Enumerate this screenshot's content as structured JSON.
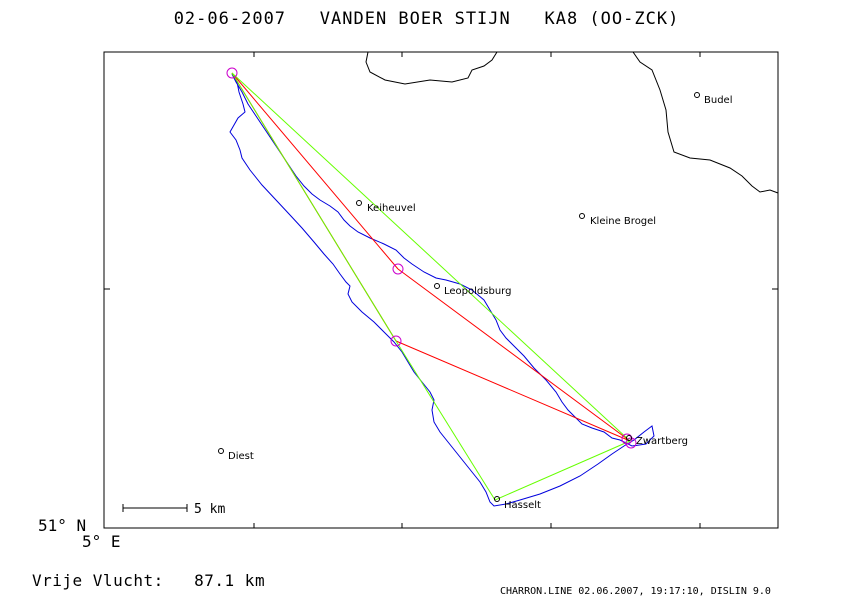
{
  "title": {
    "date": "02-06-2007",
    "pilot": "VANDEN BOER STIJN",
    "glider": "KA8 (OO-ZCK)"
  },
  "map": {
    "corner_lat": "51° N",
    "corner_lon": "5° E",
    "scale_label": "5 km",
    "places": [
      {
        "name": "Budel"
      },
      {
        "name": "Keiheuvel"
      },
      {
        "name": "Kleine Brogel"
      },
      {
        "name": "Leopoldsburg"
      },
      {
        "name": "Zwartberg"
      },
      {
        "name": "Diest"
      },
      {
        "name": "Hasselt"
      }
    ],
    "colors": {
      "track": "#0000dd",
      "red_task": "#ff0000",
      "green_task": "#66ff00",
      "turnpoint": "#cc00cc",
      "border": "#000000"
    }
  },
  "footer": {
    "distance_label": "Vrije Vlucht:",
    "distance_value": "87.1 km",
    "credits": "CHARRON.LINE 02.06.2007, 19:17:10, DISLIN 9.0"
  }
}
